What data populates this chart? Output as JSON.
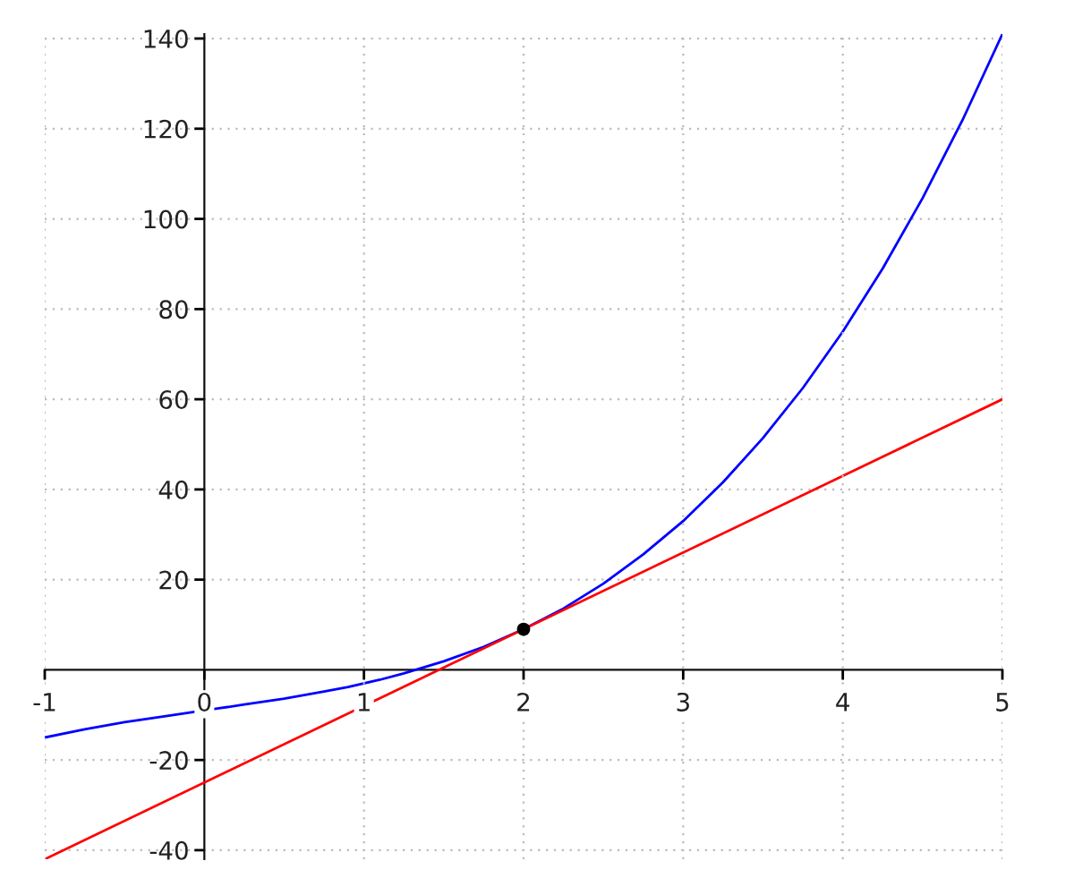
{
  "chart_data": {
    "type": "line",
    "xlim": [
      -1,
      5
    ],
    "ylim": [
      -42,
      141
    ],
    "xticks": [
      -1,
      0,
      1,
      2,
      3,
      4,
      5
    ],
    "yticks": [
      -40,
      -20,
      20,
      40,
      60,
      80,
      100,
      120,
      140
    ],
    "grid": true,
    "series": [
      {
        "color": "#0000ff",
        "x": [
          -1,
          -0.75,
          -0.5,
          -0.25,
          -0.1,
          0.1,
          0.25,
          0.5,
          0.75,
          0.9,
          1.1,
          1.25,
          1.5,
          1.75,
          2,
          2.25,
          2.5,
          2.75,
          3,
          3.25,
          3.5,
          3.75,
          4,
          4.25,
          4.5,
          4.75,
          5
        ],
        "values": [
          -15,
          -13.2,
          -11.6,
          -10.3,
          -9.5,
          -8.5,
          -7.7,
          -6.4,
          -4.8,
          -3.8,
          -2.2,
          -0.8,
          1.9,
          5.1,
          9,
          13.6,
          19.1,
          25.6,
          33,
          41.6,
          51.4,
          62.5,
          75,
          89,
          104.6,
          121.9,
          141
        ]
      },
      {
        "color": "#ff0000",
        "x": [
          -1,
          5
        ],
        "values": [
          -42,
          60
        ]
      },
      {
        "type": "scatter",
        "color": "#000000",
        "marker": "circle",
        "x": [
          2
        ],
        "values": [
          9
        ]
      }
    ]
  }
}
